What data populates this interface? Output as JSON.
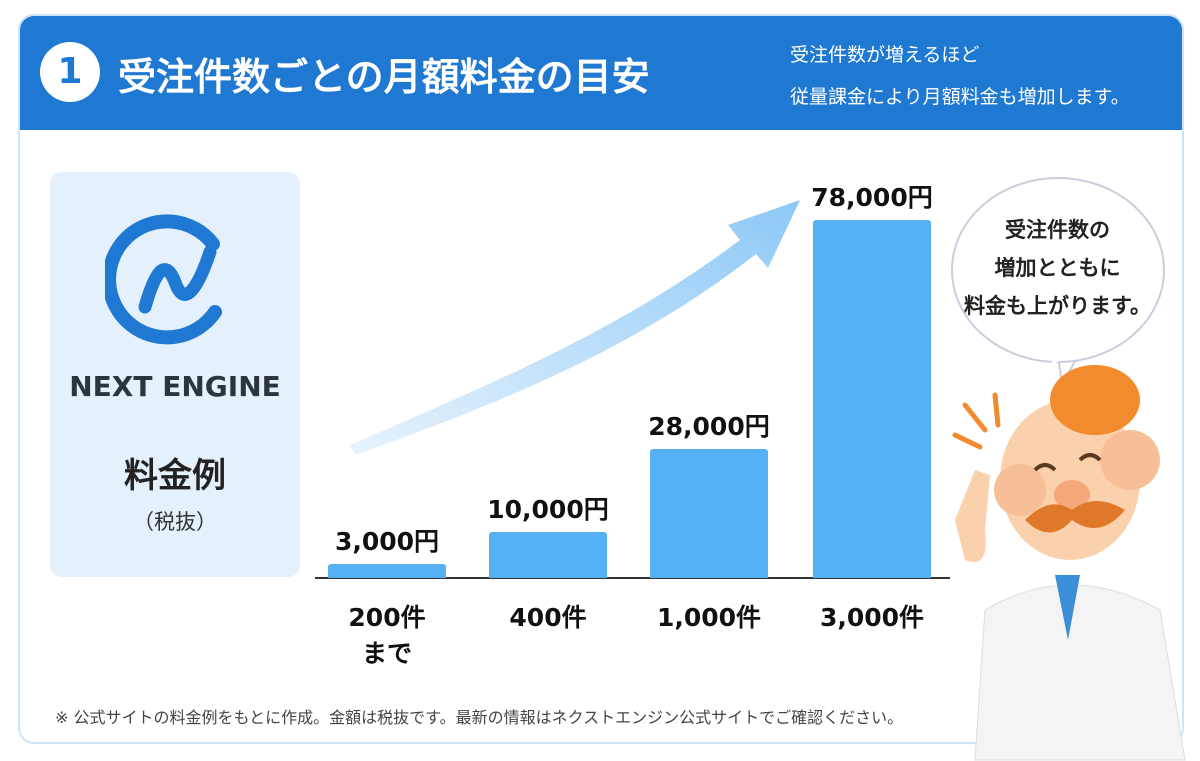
{
  "header": {
    "number": "1",
    "title": "受注件数ごとの月額料金の目安",
    "subtitle": [
      "受注件数が増えるほど",
      "従量課金により月額料金も増加します。"
    ]
  },
  "sidebar": {
    "logo_text": "NEXT ENGINE",
    "label": "料金例",
    "note": "（税抜）"
  },
  "chart_data": {
    "type": "bar",
    "categories": [
      "200件\nまで",
      "400件",
      "1,000件",
      "3,000件"
    ],
    "values": [
      3000,
      10000,
      28000,
      78000
    ],
    "value_labels": [
      "3,000円",
      "10,000円",
      "28,000円",
      "78,000円"
    ],
    "color": "#56b1f4"
  },
  "bubble": {
    "lines": [
      "受注件数の",
      "増加とともに",
      "料金も上がります。"
    ]
  },
  "footnote": "※ 公式サイトの料金例をもとに作成。金額は税抜です。最新の情報はネクストエンジン公式サイトでご確認ください。"
}
